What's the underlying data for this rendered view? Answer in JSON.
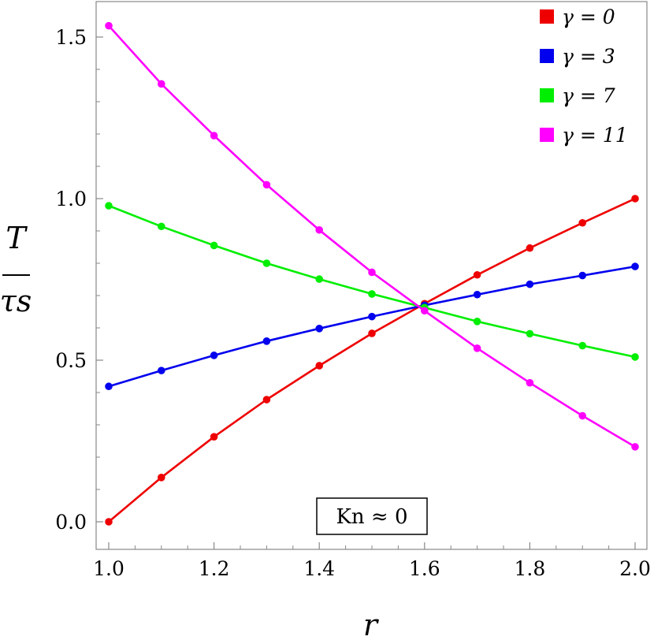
{
  "chart_data": {
    "type": "line",
    "xlabel": "r",
    "ylabel_num": "T",
    "ylabel_den": "τs",
    "xlim": [
      1.0,
      2.0
    ],
    "ylim": [
      0.0,
      1.6
    ],
    "x_ticks": [
      "1.0",
      "1.2",
      "1.4",
      "1.6",
      "1.8",
      "2.0"
    ],
    "x_tick_values": [
      1.0,
      1.2,
      1.4,
      1.6,
      1.8,
      2.0
    ],
    "y_ticks": [
      "0.0",
      "0.5",
      "1.0",
      "1.5"
    ],
    "y_tick_values": [
      0.0,
      0.5,
      1.0,
      1.5
    ],
    "grid": false,
    "legend_position": "top-right",
    "annotation": "Kn ≈ 0",
    "x": [
      1.0,
      1.1,
      1.2,
      1.3,
      1.4,
      1.5,
      1.6,
      1.7,
      1.8,
      1.9,
      2.0
    ],
    "series": [
      {
        "name": "γ = 0",
        "color": "#ee0000",
        "values": [
          0.0,
          0.137,
          0.263,
          0.378,
          0.483,
          0.583,
          0.675,
          0.764,
          0.847,
          0.925,
          1.0
        ]
      },
      {
        "name": "γ = 3",
        "color": "#0000ee",
        "values": [
          0.419,
          0.468,
          0.515,
          0.559,
          0.598,
          0.635,
          0.67,
          0.703,
          0.735,
          0.762,
          0.79
        ]
      },
      {
        "name": "γ = 7",
        "color": "#00ee00",
        "values": [
          0.978,
          0.914,
          0.855,
          0.8,
          0.751,
          0.705,
          0.663,
          0.62,
          0.582,
          0.545,
          0.51
        ]
      },
      {
        "name": "γ = 11",
        "color": "#ff00ff",
        "values": [
          1.535,
          1.355,
          1.195,
          1.043,
          0.903,
          0.772,
          0.653,
          0.537,
          0.43,
          0.328,
          0.232
        ]
      }
    ]
  }
}
